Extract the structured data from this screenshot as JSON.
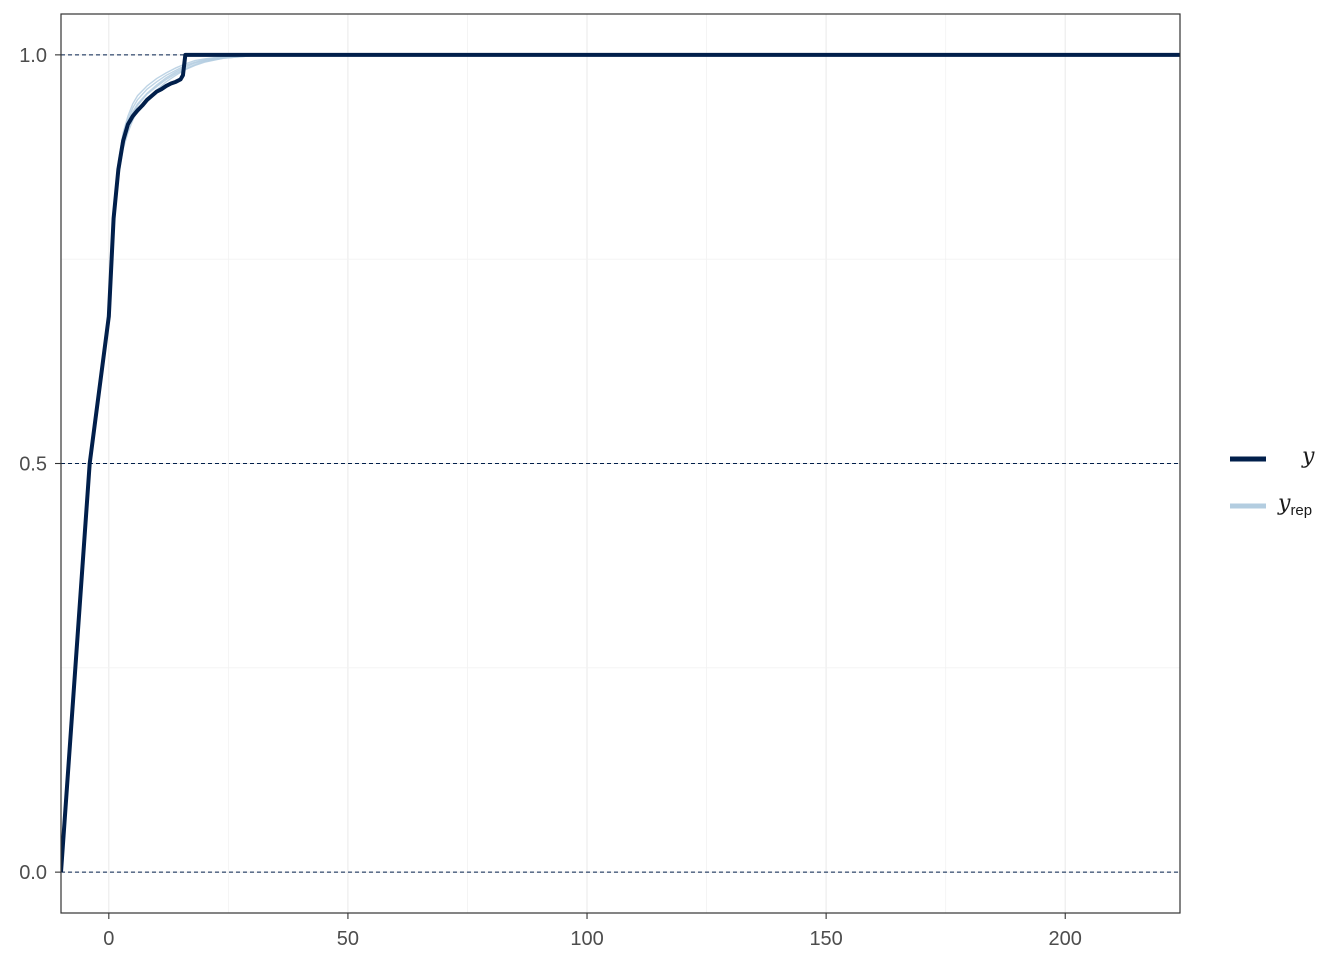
{
  "chart_data": {
    "type": "line",
    "title": "",
    "xlabel": "",
    "ylabel": "",
    "xlim": [
      -10,
      224
    ],
    "ylim": [
      -0.05,
      1.05
    ],
    "x_ticks": [
      0,
      50,
      100,
      150,
      200
    ],
    "x_tick_labels": [
      "0",
      "50",
      "100",
      "150",
      "200"
    ],
    "x_minor_ticks": [
      25,
      75,
      125,
      175
    ],
    "y_ticks": [
      0.0,
      0.5,
      1.0
    ],
    "y_tick_labels": [
      "0.0",
      "0.5",
      "1.0"
    ],
    "y_minor_ticks": [
      0.25,
      0.75
    ],
    "reference_lines_y": [
      0.0,
      0.5,
      1.0
    ],
    "grid": true,
    "legend_position": "right",
    "series": [
      {
        "name": "y",
        "color": "#011f4b",
        "x": [
          -10,
          -4,
          0,
          1,
          2,
          3,
          4,
          5,
          6,
          7,
          8,
          9,
          10,
          11,
          12,
          13,
          14,
          15,
          15.5,
          16,
          20,
          50,
          100,
          150,
          200,
          224
        ],
        "y": [
          0.0,
          0.5,
          0.68,
          0.8,
          0.86,
          0.895,
          0.915,
          0.925,
          0.932,
          0.938,
          0.945,
          0.95,
          0.955,
          0.958,
          0.962,
          0.965,
          0.967,
          0.97,
          0.975,
          1.0,
          1.0,
          1.0,
          1.0,
          1.0,
          1.0,
          1.0
        ]
      }
    ],
    "replicates": {
      "name": "y",
      "subscript": "rep",
      "color": "#b3cde0",
      "series": [
        {
          "x": [
            -10,
            -4,
            0,
            1,
            2,
            3,
            4,
            5,
            6,
            8,
            10,
            12,
            14,
            16,
            18,
            20,
            24,
            28,
            32,
            224
          ],
          "y": [
            0.0,
            0.5,
            0.68,
            0.8,
            0.86,
            0.895,
            0.915,
            0.93,
            0.94,
            0.953,
            0.963,
            0.972,
            0.979,
            0.985,
            0.99,
            0.993,
            0.997,
            0.999,
            1.0,
            1.0
          ]
        },
        {
          "x": [
            -10,
            -4,
            0,
            1,
            2,
            3,
            4,
            5,
            6,
            8,
            10,
            12,
            14,
            16,
            18,
            20,
            24,
            28,
            32,
            224
          ],
          "y": [
            0.0,
            0.5,
            0.67,
            0.79,
            0.85,
            0.885,
            0.905,
            0.92,
            0.932,
            0.946,
            0.957,
            0.967,
            0.975,
            0.982,
            0.987,
            0.991,
            0.996,
            0.998,
            1.0,
            1.0
          ]
        },
        {
          "x": [
            -10,
            -4,
            0,
            1,
            2,
            3,
            4,
            5,
            6,
            8,
            10,
            12,
            14,
            16,
            18,
            20,
            24,
            28,
            32,
            224
          ],
          "y": [
            0.0,
            0.5,
            0.69,
            0.81,
            0.87,
            0.905,
            0.925,
            0.94,
            0.95,
            0.962,
            0.971,
            0.978,
            0.984,
            0.989,
            0.993,
            0.995,
            0.998,
            0.999,
            1.0,
            1.0
          ]
        },
        {
          "x": [
            -10,
            -4,
            0,
            1,
            2,
            3,
            4,
            5,
            6,
            8,
            10,
            12,
            14,
            16,
            18,
            20,
            24,
            28,
            32,
            224
          ],
          "y": [
            0.0,
            0.5,
            0.675,
            0.795,
            0.855,
            0.89,
            0.912,
            0.927,
            0.938,
            0.952,
            0.961,
            0.97,
            0.977,
            0.983,
            0.988,
            0.992,
            0.996,
            0.998,
            1.0,
            1.0
          ]
        },
        {
          "x": [
            -10,
            -4,
            0,
            1,
            2,
            3,
            4,
            5,
            6,
            8,
            10,
            12,
            14,
            16,
            18,
            20,
            24,
            28,
            32,
            224
          ],
          "y": [
            0.0,
            0.5,
            0.685,
            0.805,
            0.865,
            0.9,
            0.92,
            0.935,
            0.945,
            0.958,
            0.967,
            0.975,
            0.981,
            0.987,
            0.991,
            0.994,
            0.997,
            0.999,
            1.0,
            1.0
          ]
        }
      ]
    }
  }
}
